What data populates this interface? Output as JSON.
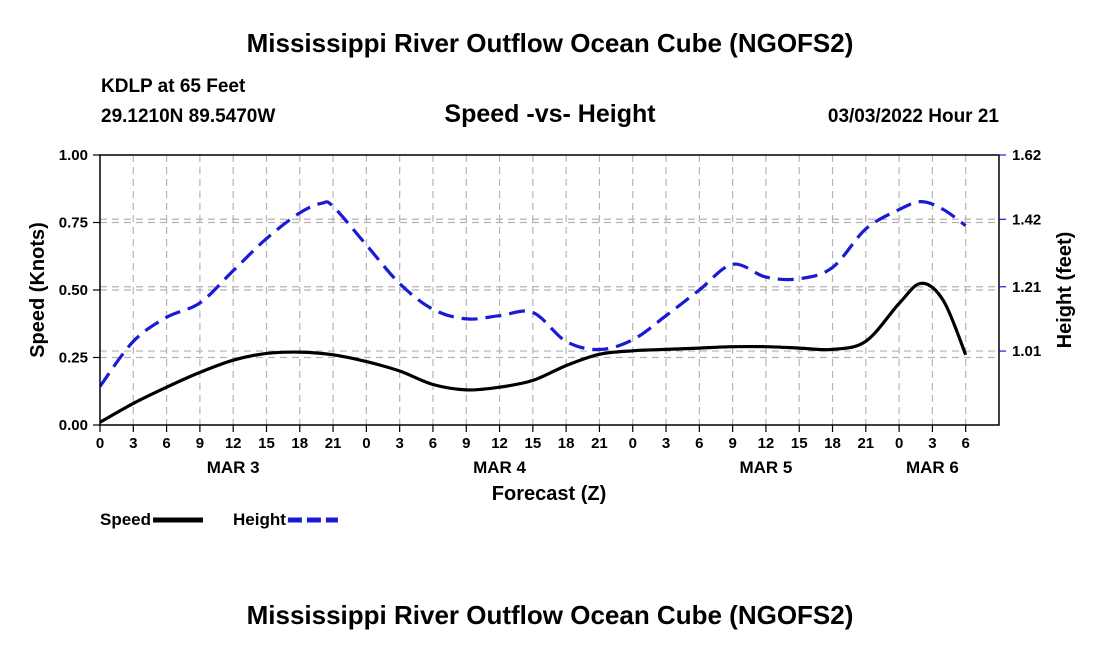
{
  "page": {
    "title": "Mississippi River Outflow Ocean Cube (NGOFS2)",
    "bottom_title": "Mississippi River Outflow Ocean Cube (NGOFS2)",
    "station": "KDLP at 65 Feet",
    "coords": "29.1210N  89.5470W",
    "subtitle": "Speed -vs- Height",
    "datetime": "03/03/2022 Hour 21"
  },
  "chart_data": {
    "type": "line",
    "title": "Speed -vs- Height",
    "xlabel": "Forecast (Z)",
    "ylabel_left": "Speed (Knots)",
    "ylabel_right": "Height (feet)",
    "x_range_hours": [
      0,
      81
    ],
    "y_left_range": [
      0,
      1.0
    ],
    "y_right_range": [
      0.78,
      1.62
    ],
    "left_ticks": [
      "0.00",
      "0.25",
      "0.50",
      "0.75",
      "1.00"
    ],
    "left_tick_values": [
      0,
      0.25,
      0.5,
      0.75,
      1.0
    ],
    "right_ticks": [
      "1.01",
      "1.21",
      "1.42",
      "1.62"
    ],
    "right_tick_values": [
      1.01,
      1.21,
      1.42,
      1.62
    ],
    "x_ticks": [
      {
        "h": 0,
        "label": "0"
      },
      {
        "h": 3,
        "label": "3"
      },
      {
        "h": 6,
        "label": "6"
      },
      {
        "h": 9,
        "label": "9"
      },
      {
        "h": 12,
        "label": "12"
      },
      {
        "h": 15,
        "label": "15"
      },
      {
        "h": 18,
        "label": "18"
      },
      {
        "h": 21,
        "label": "21"
      },
      {
        "h": 24,
        "label": "0"
      },
      {
        "h": 27,
        "label": "3"
      },
      {
        "h": 30,
        "label": "6"
      },
      {
        "h": 33,
        "label": "9"
      },
      {
        "h": 36,
        "label": "12"
      },
      {
        "h": 39,
        "label": "15"
      },
      {
        "h": 42,
        "label": "18"
      },
      {
        "h": 45,
        "label": "21"
      },
      {
        "h": 48,
        "label": "0"
      },
      {
        "h": 51,
        "label": "3"
      },
      {
        "h": 54,
        "label": "6"
      },
      {
        "h": 57,
        "label": "9"
      },
      {
        "h": 60,
        "label": "12"
      },
      {
        "h": 63,
        "label": "15"
      },
      {
        "h": 66,
        "label": "18"
      },
      {
        "h": 69,
        "label": "21"
      },
      {
        "h": 72,
        "label": "0"
      },
      {
        "h": 75,
        "label": "3"
      },
      {
        "h": 78,
        "label": "6"
      }
    ],
    "day_labels": [
      {
        "h": 12,
        "label": "MAR 3"
      },
      {
        "h": 36,
        "label": "MAR 4"
      },
      {
        "h": 60,
        "label": "MAR 5"
      },
      {
        "h": 75,
        "label": "MAR 6"
      }
    ],
    "series": [
      {
        "name": "Speed",
        "axis": "left",
        "color": "#000000",
        "style": "solid",
        "x": [
          0,
          3,
          6,
          9,
          12,
          15,
          18,
          21,
          24,
          27,
          30,
          33,
          36,
          39,
          42,
          45,
          48,
          51,
          54,
          57,
          60,
          63,
          66,
          69,
          72,
          74,
          76,
          78
        ],
        "values": [
          0.01,
          0.08,
          0.14,
          0.195,
          0.24,
          0.265,
          0.27,
          0.26,
          0.235,
          0.2,
          0.15,
          0.13,
          0.14,
          0.165,
          0.22,
          0.262,
          0.275,
          0.28,
          0.285,
          0.29,
          0.29,
          0.285,
          0.28,
          0.31,
          0.45,
          0.525,
          0.46,
          0.26
        ]
      },
      {
        "name": "Height",
        "axis": "right",
        "color": "#1a1ad6",
        "style": "dashed",
        "x": [
          0,
          3,
          6,
          9,
          12,
          15,
          18,
          20,
          21,
          24,
          27,
          30,
          33,
          36,
          39,
          42,
          45,
          48,
          51,
          54,
          57,
          60,
          63,
          66,
          69,
          72,
          74,
          76,
          78
        ],
        "values": [
          0.9,
          1.04,
          1.115,
          1.16,
          1.26,
          1.36,
          1.44,
          1.47,
          1.46,
          1.34,
          1.22,
          1.14,
          1.11,
          1.12,
          1.13,
          1.04,
          1.015,
          1.045,
          1.12,
          1.2,
          1.28,
          1.24,
          1.235,
          1.27,
          1.39,
          1.45,
          1.475,
          1.45,
          1.4
        ]
      }
    ],
    "legend": [
      {
        "name": "Speed",
        "color": "#000000",
        "style": "solid"
      },
      {
        "name": "Height",
        "color": "#1a1ad6",
        "style": "dashed"
      }
    ]
  }
}
